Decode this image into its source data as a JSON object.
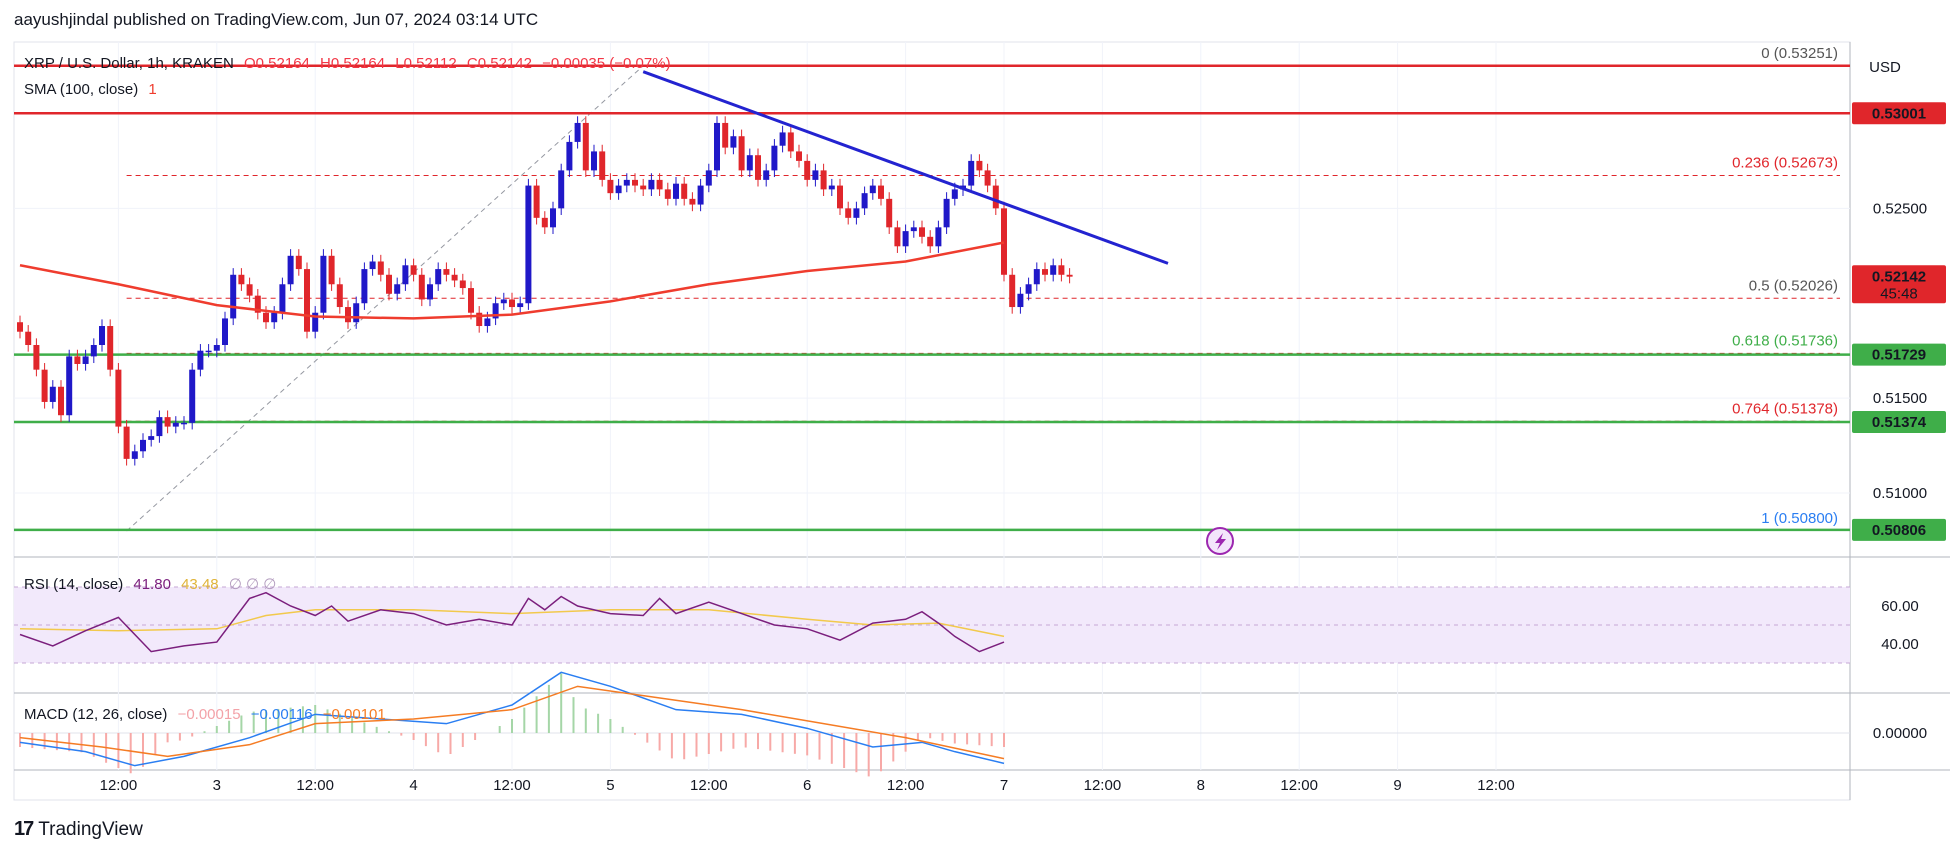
{
  "header": {
    "publisher": "aayushjindal published on TradingView.com, Jun 07, 2024 03:14 UTC"
  },
  "legend": {
    "symbol": "XRP / U.S. Dollar, 1h, KRAKEN",
    "open": "O0.52164",
    "high": "H0.52164",
    "low": "L0.52112",
    "close": "C0.52142",
    "change": "−0.00035 (−0.07%)",
    "sma": "SMA (100, close)",
    "sma_val": "1",
    "rsi": "RSI (14, close)",
    "rsi_val1": "41.80",
    "rsi_val2": "43.48",
    "rsi_extra": "∅  ∅  ∅",
    "macd": "MACD (12, 26, close)",
    "macd_hist": "−0.00015",
    "macd_line": "−0.00116",
    "macd_signal": "−0.00101"
  },
  "colors": {
    "up": "#2018c8",
    "down": "#e0262b",
    "sma": "#ef3c2e",
    "trendline": "#2323d0",
    "support": "#3fae49",
    "resistance": "#e0262b",
    "fib_dash": "#e0262b",
    "rsi_bg": "#f2e9fb",
    "rsi_line": "#7b1f7d",
    "rsi_ma": "#f2c94c",
    "macd_line": "#2a7ef2",
    "macd_signal": "#f57c24",
    "last_price_bg": "#e0262b"
  },
  "brand": {
    "name": "TradingView",
    "logo": "17"
  },
  "chart_data": {
    "type": "candlestick",
    "currency": "USD",
    "y_ticks": [
      "0.52500",
      "0.51500",
      "0.51000"
    ],
    "price_tags": [
      {
        "label": "0.53001",
        "price": 0.53001,
        "kind": "resistance"
      },
      {
        "label": "0.52142",
        "price": 0.52142,
        "kind": "last",
        "sub": "45:48"
      },
      {
        "label": "0.51729",
        "price": 0.51729,
        "kind": "support"
      },
      {
        "label": "0.51374",
        "price": 0.51374,
        "kind": "support"
      },
      {
        "label": "0.50806",
        "price": 0.50806,
        "kind": "support"
      }
    ],
    "horizontal_lines": [
      {
        "price": 0.53251,
        "color": "resistance"
      },
      {
        "price": 0.53001,
        "color": "resistance"
      },
      {
        "price": 0.51729,
        "color": "support"
      },
      {
        "price": 0.51374,
        "color": "support"
      },
      {
        "price": 0.50806,
        "color": "support"
      }
    ],
    "fib_levels": [
      {
        "ratio": "0",
        "value": "(0.53251)",
        "price": 0.53251
      },
      {
        "ratio": "0.236",
        "value": "(0.52673)",
        "price": 0.52673
      },
      {
        "ratio": "0.5",
        "value": "(0.52026)",
        "price": 0.52026
      },
      {
        "ratio": "0.618",
        "value": "(0.51736)",
        "price": 0.51736
      },
      {
        "ratio": "0.764",
        "value": "(0.51378)",
        "price": 0.51378
      },
      {
        "ratio": "1",
        "value": "(0.50800)",
        "price": 0.508
      }
    ],
    "x_ticks": [
      "12:00",
      "3",
      "12:00",
      "4",
      "12:00",
      "5",
      "12:00",
      "6",
      "12:00",
      "7",
      "12:00",
      "8",
      "12:00",
      "9",
      "12:00"
    ],
    "x_tick_hours": [
      12,
      24,
      36,
      48,
      60,
      72,
      84,
      96,
      108,
      120,
      132,
      144,
      156,
      168,
      180
    ],
    "trendline": {
      "from": {
        "hour": 76,
        "price": 0.5322
      },
      "to": {
        "hour": 140,
        "price": 0.5221
      }
    },
    "fib_anchor": {
      "from": {
        "hour": 13,
        "price": 0.508
      },
      "to": {
        "hour": 76,
        "price": 0.53251
      }
    },
    "candles_close": [
      0.5185,
      0.5178,
      0.5165,
      0.5148,
      0.5156,
      0.5141,
      0.5172,
      0.5168,
      0.5172,
      0.5178,
      0.5188,
      0.5165,
      0.5135,
      0.5118,
      0.5122,
      0.5128,
      0.513,
      0.514,
      0.5135,
      0.5137,
      0.5137,
      0.5165,
      0.5175,
      0.5175,
      0.5178,
      0.5192,
      0.5215,
      0.521,
      0.5204,
      0.5195,
      0.519,
      0.5195,
      0.521,
      0.5225,
      0.5218,
      0.5185,
      0.5195,
      0.5225,
      0.521,
      0.5198,
      0.519,
      0.52,
      0.5218,
      0.5222,
      0.5215,
      0.5205,
      0.521,
      0.522,
      0.5215,
      0.5202,
      0.521,
      0.5218,
      0.5215,
      0.5212,
      0.5208,
      0.5195,
      0.5188,
      0.5192,
      0.52,
      0.5202,
      0.5198,
      0.52,
      0.5262,
      0.5245,
      0.524,
      0.525,
      0.527,
      0.5285,
      0.5295,
      0.527,
      0.528,
      0.5265,
      0.5258,
      0.5262,
      0.5265,
      0.5262,
      0.526,
      0.5265,
      0.526,
      0.5255,
      0.5263,
      0.5255,
      0.5252,
      0.5262,
      0.527,
      0.5295,
      0.5282,
      0.5288,
      0.527,
      0.5278,
      0.5265,
      0.527,
      0.5283,
      0.529,
      0.528,
      0.5275,
      0.5265,
      0.527,
      0.526,
      0.5262,
      0.525,
      0.5245,
      0.525,
      0.5258,
      0.5262,
      0.5255,
      0.524,
      0.523,
      0.5238,
      0.524,
      0.5235,
      0.523,
      0.524,
      0.5255,
      0.526,
      0.5262,
      0.5275,
      0.527,
      0.5262,
      0.525,
      0.5215,
      0.5198,
      0.5205,
      0.521,
      0.5218,
      0.5215,
      0.522,
      0.5215,
      0.5214
    ],
    "sma_points": [
      [
        0,
        0.522
      ],
      [
        12,
        0.521
      ],
      [
        24,
        0.5199
      ],
      [
        36,
        0.5193
      ],
      [
        48,
        0.5192
      ],
      [
        60,
        0.5194
      ],
      [
        72,
        0.5201
      ],
      [
        84,
        0.521
      ],
      [
        96,
        0.5217
      ],
      [
        108,
        0.5222
      ],
      [
        120,
        0.5232
      ]
    ],
    "rsi_ticks": [
      "60.00",
      "40.00"
    ],
    "rsi_bands": [
      70,
      50,
      30
    ],
    "rsi_points": [
      [
        0,
        45
      ],
      [
        4,
        39
      ],
      [
        8,
        47
      ],
      [
        12,
        54
      ],
      [
        16,
        36
      ],
      [
        20,
        39
      ],
      [
        24,
        41
      ],
      [
        28,
        64
      ],
      [
        30,
        67
      ],
      [
        33,
        60
      ],
      [
        36,
        55
      ],
      [
        38,
        60
      ],
      [
        40,
        52
      ],
      [
        44,
        58
      ],
      [
        48,
        56
      ],
      [
        52,
        50
      ],
      [
        56,
        53
      ],
      [
        60,
        50
      ],
      [
        62,
        64
      ],
      [
        64,
        58
      ],
      [
        66,
        65
      ],
      [
        68,
        60
      ],
      [
        72,
        56
      ],
      [
        76,
        55
      ],
      [
        78,
        64
      ],
      [
        80,
        56
      ],
      [
        84,
        62
      ],
      [
        88,
        56
      ],
      [
        92,
        50
      ],
      [
        96,
        48
      ],
      [
        100,
        42
      ],
      [
        104,
        51
      ],
      [
        108,
        53
      ],
      [
        110,
        57
      ],
      [
        112,
        51
      ],
      [
        114,
        44
      ],
      [
        117,
        36
      ],
      [
        120,
        41
      ]
    ],
    "rsi_ma_points": [
      [
        0,
        48
      ],
      [
        12,
        47
      ],
      [
        24,
        48
      ],
      [
        30,
        55
      ],
      [
        36,
        58
      ],
      [
        48,
        58
      ],
      [
        60,
        56
      ],
      [
        72,
        58
      ],
      [
        84,
        58
      ],
      [
        96,
        53
      ],
      [
        104,
        50
      ],
      [
        112,
        51
      ],
      [
        120,
        44
      ]
    ],
    "macd_ticks": [
      "0.00000"
    ],
    "macd_points": [
      [
        0,
        -0.0004
      ],
      [
        8,
        -0.0008
      ],
      [
        14,
        -0.0014
      ],
      [
        20,
        -0.001
      ],
      [
        28,
        -0.0002
      ],
      [
        36,
        0.0008
      ],
      [
        44,
        0.0006
      ],
      [
        52,
        0.0004
      ],
      [
        60,
        0.0012
      ],
      [
        66,
        0.0026
      ],
      [
        72,
        0.002
      ],
      [
        80,
        0.001
      ],
      [
        88,
        0.0008
      ],
      [
        96,
        0.0002
      ],
      [
        104,
        -0.0006
      ],
      [
        110,
        -0.0004
      ],
      [
        114,
        -0.0008
      ],
      [
        120,
        -0.0013
      ]
    ],
    "macd_signal_points": [
      [
        0,
        -0.0002
      ],
      [
        10,
        -0.0006
      ],
      [
        18,
        -0.001
      ],
      [
        28,
        -0.0005
      ],
      [
        36,
        0.0004
      ],
      [
        48,
        0.0006
      ],
      [
        60,
        0.001
      ],
      [
        68,
        0.002
      ],
      [
        76,
        0.0016
      ],
      [
        88,
        0.001
      ],
      [
        98,
        0.0004
      ],
      [
        108,
        -0.0002
      ],
      [
        120,
        -0.0011
      ]
    ]
  }
}
